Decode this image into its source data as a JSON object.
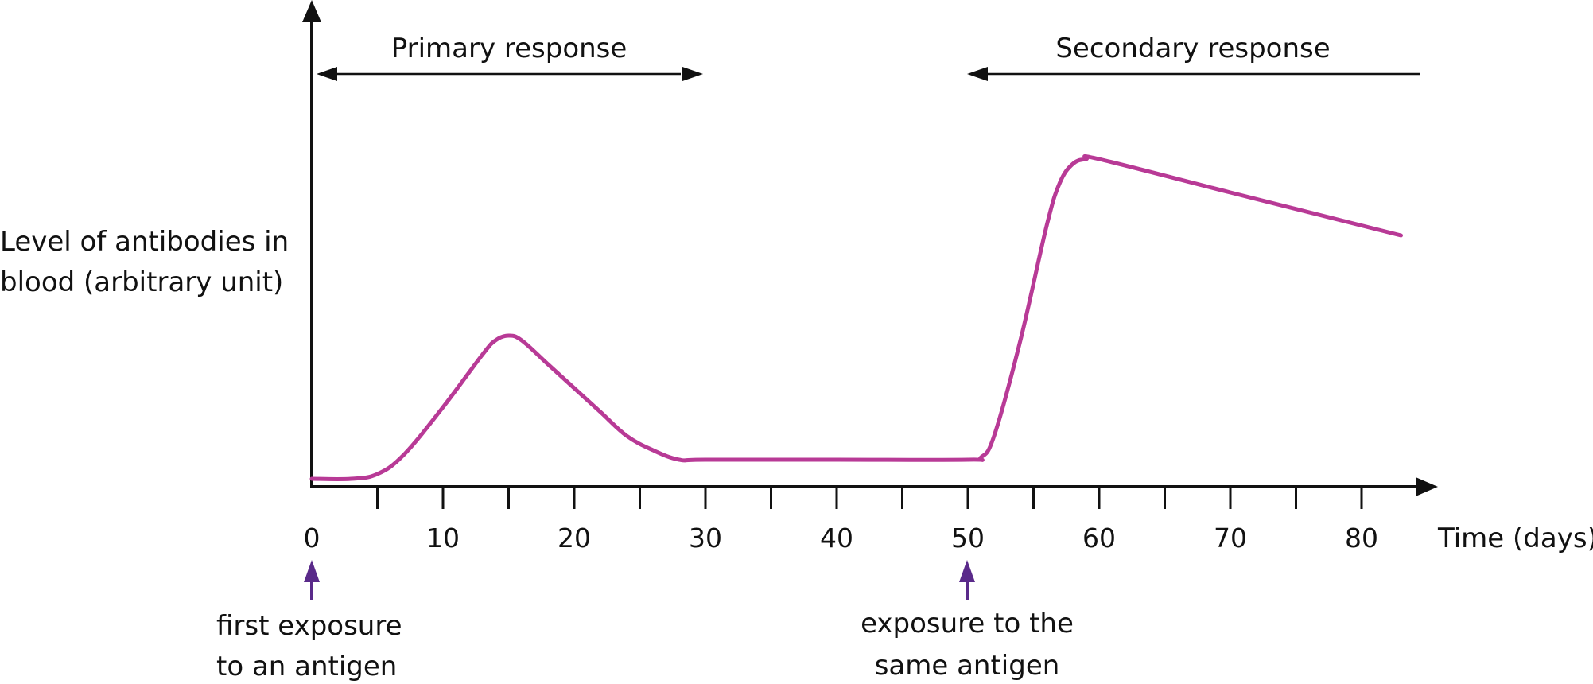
{
  "chart_data": {
    "type": "line",
    "title": "",
    "xlabel": "Time (days)",
    "ylabel_lines": [
      "Level of antibodies in",
      "blood (arbitrary unit)"
    ],
    "xlim": [
      0,
      85
    ],
    "ylim": [
      0,
      100
    ],
    "x_ticks_labeled": [
      0,
      10,
      20,
      30,
      40,
      50,
      60,
      70,
      80
    ],
    "x_tick_labels": [
      "0",
      "10",
      "20",
      "30",
      "40",
      "50",
      "60",
      "70",
      "80"
    ],
    "x_ticks_minor": [
      5,
      15,
      25,
      35,
      45,
      55,
      65,
      75
    ],
    "grid": false,
    "series": [
      {
        "color": "#b83a96",
        "points": [
          [
            0,
            1
          ],
          [
            3,
            1
          ],
          [
            5,
            2
          ],
          [
            7,
            6
          ],
          [
            10,
            16
          ],
          [
            13,
            27
          ],
          [
            14,
            30
          ],
          [
            15,
            31
          ],
          [
            16,
            30
          ],
          [
            18,
            25
          ],
          [
            20,
            20
          ],
          [
            22,
            15
          ],
          [
            24,
            10
          ],
          [
            26,
            7
          ],
          [
            28,
            5
          ],
          [
            30,
            5
          ],
          [
            40,
            5
          ],
          [
            50,
            5
          ],
          [
            51,
            5.5
          ],
          [
            52,
            10
          ],
          [
            54,
            30
          ],
          [
            56,
            54
          ],
          [
            57,
            63
          ],
          [
            58,
            67
          ],
          [
            59,
            68
          ],
          [
            60,
            68
          ],
          [
            70,
            61
          ],
          [
            83,
            52
          ]
        ]
      }
    ],
    "annotations": {
      "primary": {
        "label": "Primary response",
        "x_start": 0,
        "x_end": 30
      },
      "secondary": {
        "label": "Secondary response",
        "x_start": 50,
        "x_end": 85
      },
      "exposures": [
        {
          "x": 0,
          "lines": [
            "first exposure",
            "to an antigen"
          ]
        },
        {
          "x": 50,
          "lines": [
            "exposure to the",
            "same antigen"
          ]
        }
      ]
    },
    "colors": {
      "curve": "#b83a96",
      "exposure_arrow": "#5a2a8a",
      "axis": "#111111"
    }
  }
}
